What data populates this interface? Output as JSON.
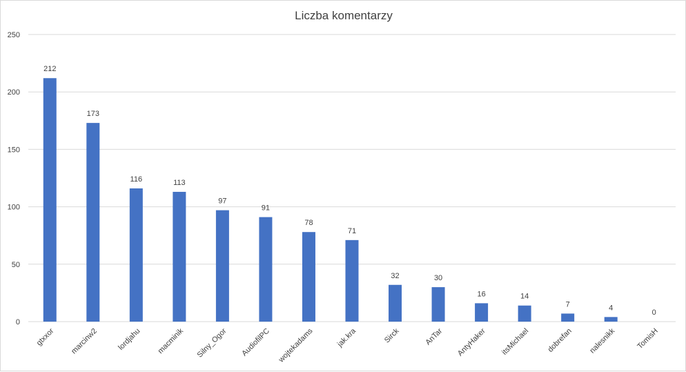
{
  "chart_data": {
    "type": "bar",
    "title": "Liczba komentarzy",
    "categories": [
      "gtxxor",
      "marcinw2",
      "lordjahu",
      "macminik",
      "Silny_Ogor",
      "AudiofilPC",
      "wojtekadams",
      "jak.kra",
      "Sirck",
      "AnTar",
      "AntyHaker",
      "itsMichael",
      "dobrefan",
      "nalesnikk",
      "TomisH"
    ],
    "values": [
      212,
      173,
      116,
      113,
      97,
      91,
      78,
      71,
      32,
      30,
      16,
      14,
      7,
      4,
      0
    ],
    "ylim": [
      0,
      250
    ],
    "yticks": [
      0,
      50,
      100,
      150,
      200,
      250
    ],
    "grid": true,
    "legend": "none",
    "bar_color": "#4472C4",
    "grid_color": "#d9d9d9"
  }
}
